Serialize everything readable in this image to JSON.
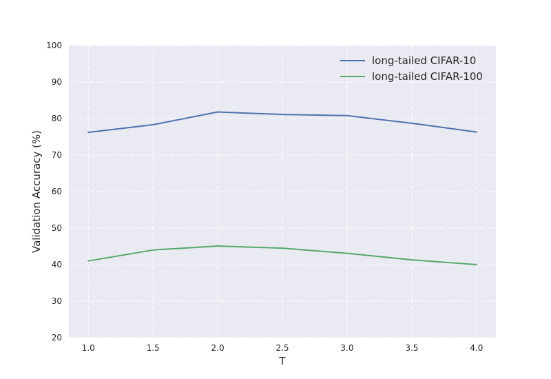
{
  "chart_data": {
    "type": "line",
    "x": [
      1.0,
      1.5,
      2.0,
      2.5,
      3.0,
      3.5,
      4.0
    ],
    "series": [
      {
        "name": "long-tailed CIFAR-10",
        "values": [
          76.2,
          78.3,
          81.8,
          81.1,
          80.8,
          78.7,
          76.3
        ],
        "color": "#4c72b0"
      },
      {
        "name": "long-tailed CIFAR-100",
        "values": [
          41.0,
          44.0,
          45.1,
          44.5,
          43.1,
          41.3,
          40.0
        ],
        "color": "#55a868"
      }
    ],
    "xlabel": "T",
    "ylabel": "Validation Accuracy (%)",
    "xlim": [
      0.85,
      4.15
    ],
    "ylim": [
      20,
      100
    ],
    "xticks": [
      1.0,
      1.5,
      2.0,
      2.5,
      3.0,
      3.5,
      4.0
    ],
    "xtick_labels": [
      "1.0",
      "1.5",
      "2.0",
      "2.5",
      "3.0",
      "3.5",
      "4.0"
    ],
    "yticks": [
      20,
      30,
      40,
      50,
      60,
      70,
      80,
      90,
      100
    ],
    "ytick_labels": [
      "20",
      "30",
      "40",
      "50",
      "60",
      "70",
      "80",
      "90",
      "100"
    ],
    "grid": true,
    "background_color": "#eaeaf2",
    "legend_position": "top-right"
  }
}
